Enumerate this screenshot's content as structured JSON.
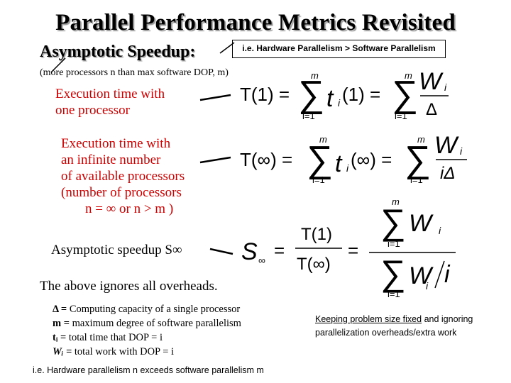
{
  "slide": {
    "title": "Parallel Performance Metrics Revisited",
    "subtitle": "Asymptotic Speedup:",
    "callout": "i.e. Hardware Parallelism > Software Parallelism",
    "note": "(more processors n than max software DOP, m)",
    "labels": {
      "exec_one_line1": "Execution time with",
      "exec_one_line2": "one processor",
      "exec_inf_line1": "Execution time with",
      "exec_inf_line2": "an infinite number",
      "exec_inf_line3": "of available processors",
      "exec_inf_line4": "(number of processors",
      "exec_inf_line5": "n = ∞ or  n > m )",
      "speedup": "Asymptotic speedup S∞"
    },
    "ignores": "The above ignores all overheads.",
    "formulas": {
      "t1_lhs": "T(1) =",
      "t1_sum_top": "m",
      "t1_sum_bottom": "i=1",
      "t1_term": "t",
      "t1_sub": "i",
      "t1_arg": "(1) =",
      "t1_W": "W",
      "t1_W_sub": "i",
      "t1_den": "Δ",
      "tinf_lhs": "T(∞) =",
      "tinf_sum_top": "m",
      "tinf_sum_bottom": "i=1",
      "tinf_term": "t",
      "tinf_sub": "i",
      "tinf_arg": "(∞) =",
      "tinf_W": "W",
      "tinf_W_sub": "i",
      "tinf_den": "iΔ",
      "s_lhs": "S",
      "s_lhs_sub": "∞",
      "s_eq": "=",
      "s_num": "T(1)",
      "s_den": "T(∞)",
      "s_eq2": "=",
      "s_sum_top": "m",
      "s_sum_bottom": "i=1",
      "s_W": "W",
      "s_W_sub": "i",
      "s_den_W": "W",
      "s_den_sub": "i",
      "s_den_i": "i"
    },
    "legend": [
      {
        "sym": "Δ =",
        "text": " Computing capacity of a single processor"
      },
      {
        "sym": "m =",
        "text": " maximum degree of software parallelism"
      },
      {
        "sym": "tᵢ =",
        "text": "  total time that DOP = i"
      },
      {
        "sym": "Wᵢ =",
        "text": "  total work with DOP = i"
      }
    ],
    "keep_underlined": "Keeping problem size fixed",
    "keep_rest_line1": " and ignoring",
    "keep_line2": "parallelization overheads/extra work",
    "footer": "i.e.  Hardware parallelism n  exceeds software parallelism  m"
  }
}
